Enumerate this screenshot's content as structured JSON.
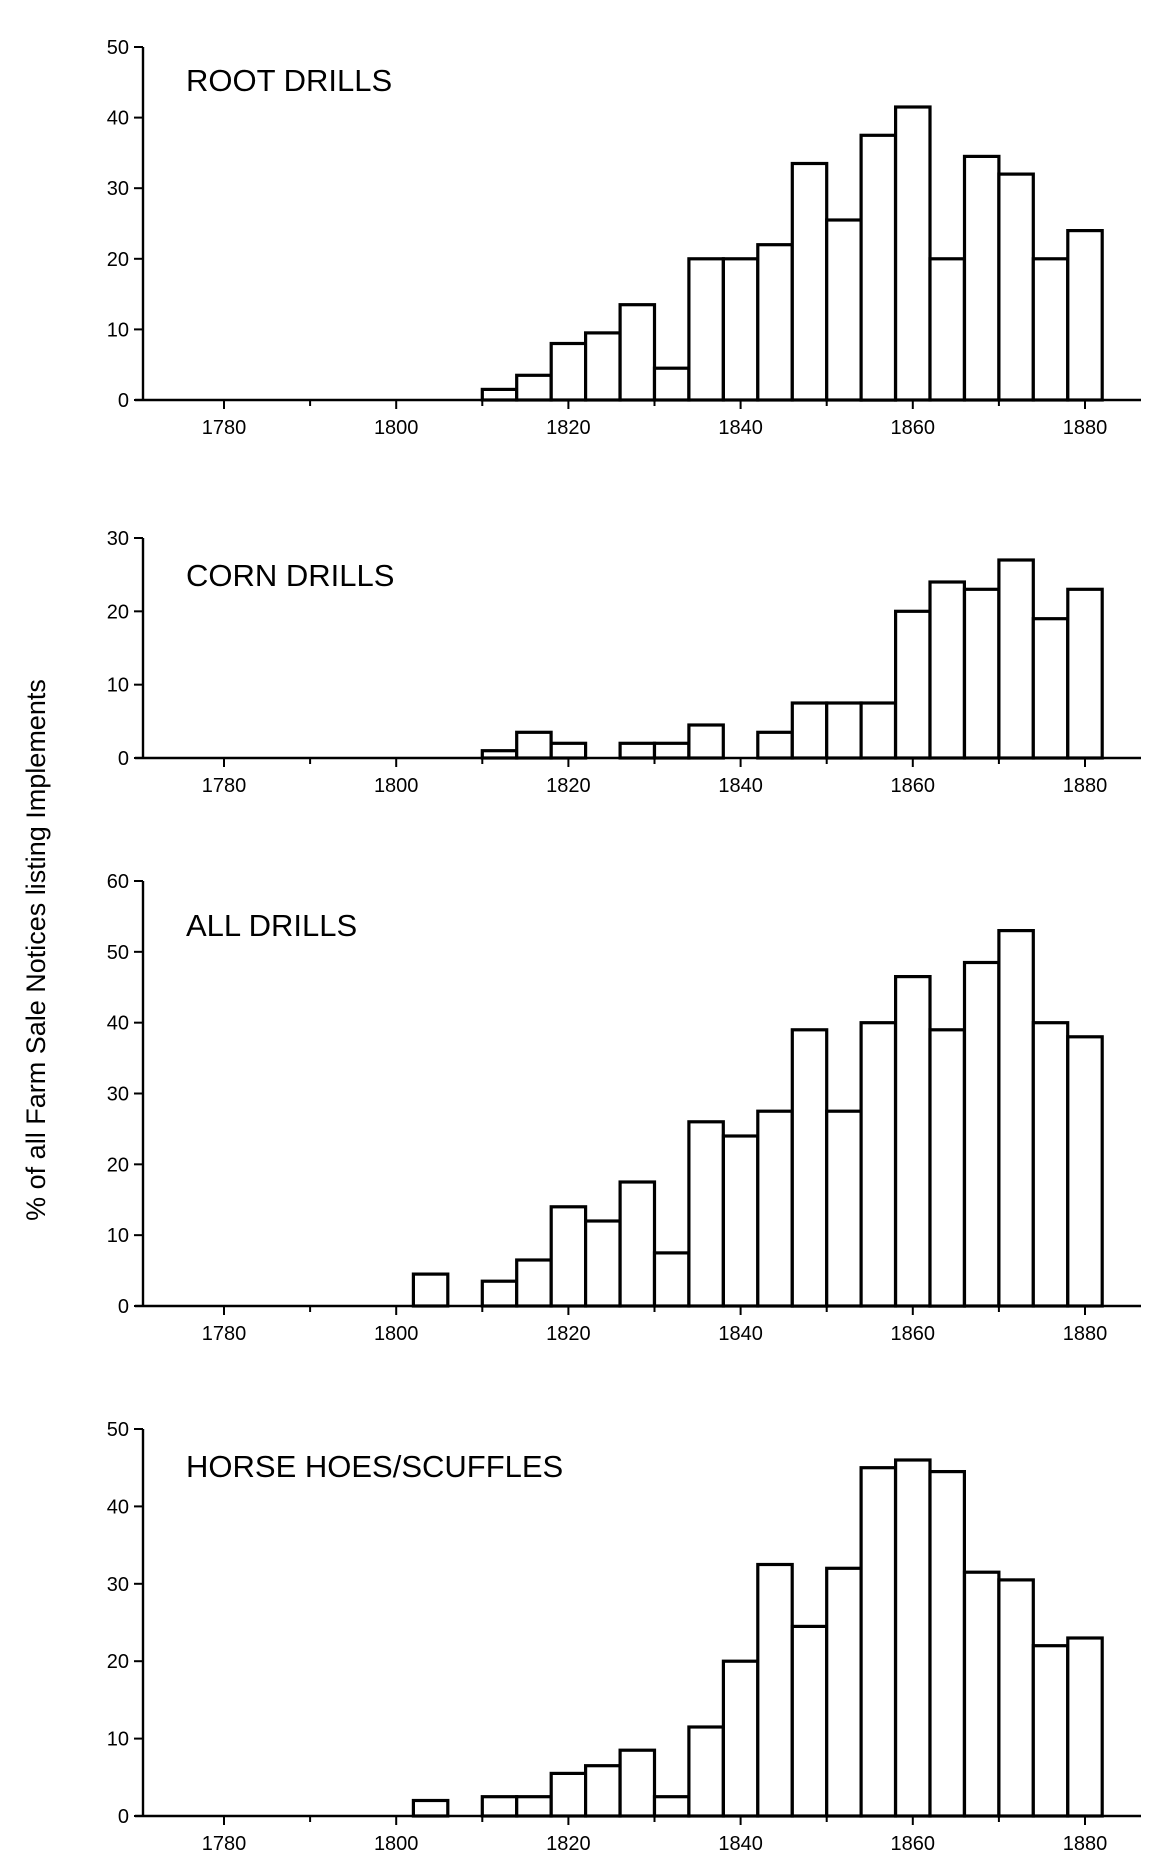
{
  "y_axis_label": "% of all Farm Sale Notices listing Implements",
  "chart_data": [
    {
      "type": "bar",
      "title": "ROOT DRILLS",
      "xlim": [
        1772,
        1885
      ],
      "ylim": [
        0,
        50
      ],
      "x_ticks": [
        1780,
        1800,
        1820,
        1840,
        1860,
        1880
      ],
      "y_ticks": [
        0,
        10,
        20,
        30,
        40,
        50
      ],
      "bin_width": 4,
      "bins": [
        {
          "x": 1812,
          "value": 1.5
        },
        {
          "x": 1816,
          "value": 3.5
        },
        {
          "x": 1820,
          "value": 8
        },
        {
          "x": 1824,
          "value": 9.5
        },
        {
          "x": 1828,
          "value": 13.5
        },
        {
          "x": 1832,
          "value": 4.5
        },
        {
          "x": 1836,
          "value": 20
        },
        {
          "x": 1840,
          "value": 20
        },
        {
          "x": 1844,
          "value": 22
        },
        {
          "x": 1848,
          "value": 33.5
        },
        {
          "x": 1852,
          "value": 25.5
        },
        {
          "x": 1856,
          "value": 37.5
        },
        {
          "x": 1860,
          "value": 41.5
        },
        {
          "x": 1864,
          "value": 20
        },
        {
          "x": 1868,
          "value": 34.5
        },
        {
          "x": 1872,
          "value": 32
        },
        {
          "x": 1876,
          "value": 20
        },
        {
          "x": 1880,
          "value": 24
        }
      ]
    },
    {
      "type": "bar",
      "title": "CORN DRILLS",
      "xlim": [
        1772,
        1885
      ],
      "ylim": [
        0,
        30
      ],
      "x_ticks": [
        1780,
        1800,
        1820,
        1840,
        1860,
        1880
      ],
      "y_ticks": [
        0,
        10,
        20,
        30
      ],
      "bin_width": 4,
      "bins": [
        {
          "x": 1812,
          "value": 1
        },
        {
          "x": 1816,
          "value": 3.5
        },
        {
          "x": 1820,
          "value": 2
        },
        {
          "x": 1828,
          "value": 2
        },
        {
          "x": 1832,
          "value": 2
        },
        {
          "x": 1836,
          "value": 4.5
        },
        {
          "x": 1844,
          "value": 3.5
        },
        {
          "x": 1848,
          "value": 7.5
        },
        {
          "x": 1852,
          "value": 7.5
        },
        {
          "x": 1856,
          "value": 7.5
        },
        {
          "x": 1860,
          "value": 20
        },
        {
          "x": 1864,
          "value": 24
        },
        {
          "x": 1868,
          "value": 23
        },
        {
          "x": 1872,
          "value": 27
        },
        {
          "x": 1876,
          "value": 19
        },
        {
          "x": 1880,
          "value": 23
        }
      ]
    },
    {
      "type": "bar",
      "title": "ALL DRILLS",
      "xlim": [
        1772,
        1885
      ],
      "ylim": [
        0,
        60
      ],
      "x_ticks": [
        1780,
        1800,
        1820,
        1840,
        1860,
        1880
      ],
      "y_ticks": [
        0,
        10,
        20,
        30,
        40,
        50,
        60
      ],
      "bin_width": 4,
      "bins": [
        {
          "x": 1804,
          "value": 4.5
        },
        {
          "x": 1812,
          "value": 3.5
        },
        {
          "x": 1816,
          "value": 6.5
        },
        {
          "x": 1820,
          "value": 14
        },
        {
          "x": 1824,
          "value": 12
        },
        {
          "x": 1828,
          "value": 17.5
        },
        {
          "x": 1832,
          "value": 7.5
        },
        {
          "x": 1836,
          "value": 26
        },
        {
          "x": 1840,
          "value": 24
        },
        {
          "x": 1844,
          "value": 27.5
        },
        {
          "x": 1848,
          "value": 39
        },
        {
          "x": 1852,
          "value": 27.5
        },
        {
          "x": 1856,
          "value": 40
        },
        {
          "x": 1860,
          "value": 46.5
        },
        {
          "x": 1864,
          "value": 39
        },
        {
          "x": 1868,
          "value": 48.5
        },
        {
          "x": 1872,
          "value": 53
        },
        {
          "x": 1876,
          "value": 40
        },
        {
          "x": 1880,
          "value": 38
        }
      ]
    },
    {
      "type": "bar",
      "title": "HORSE HOES/SCUFFLES",
      "xlim": [
        1772,
        1885
      ],
      "ylim": [
        0,
        50
      ],
      "x_ticks": [
        1780,
        1800,
        1820,
        1840,
        1860,
        1880
      ],
      "y_ticks": [
        0,
        10,
        20,
        30,
        40,
        50
      ],
      "bin_width": 4,
      "bins": [
        {
          "x": 1804,
          "value": 2
        },
        {
          "x": 1812,
          "value": 2.5
        },
        {
          "x": 1816,
          "value": 2.5
        },
        {
          "x": 1820,
          "value": 5.5
        },
        {
          "x": 1824,
          "value": 6.5
        },
        {
          "x": 1828,
          "value": 8.5
        },
        {
          "x": 1832,
          "value": 2.5
        },
        {
          "x": 1836,
          "value": 11.5
        },
        {
          "x": 1840,
          "value": 20
        },
        {
          "x": 1844,
          "value": 32.5
        },
        {
          "x": 1848,
          "value": 24.5
        },
        {
          "x": 1852,
          "value": 32
        },
        {
          "x": 1856,
          "value": 45
        },
        {
          "x": 1860,
          "value": 46
        },
        {
          "x": 1864,
          "value": 44.5
        },
        {
          "x": 1868,
          "value": 31.5
        },
        {
          "x": 1872,
          "value": 30.5
        },
        {
          "x": 1876,
          "value": 22
        },
        {
          "x": 1880,
          "value": 23
        }
      ]
    }
  ]
}
